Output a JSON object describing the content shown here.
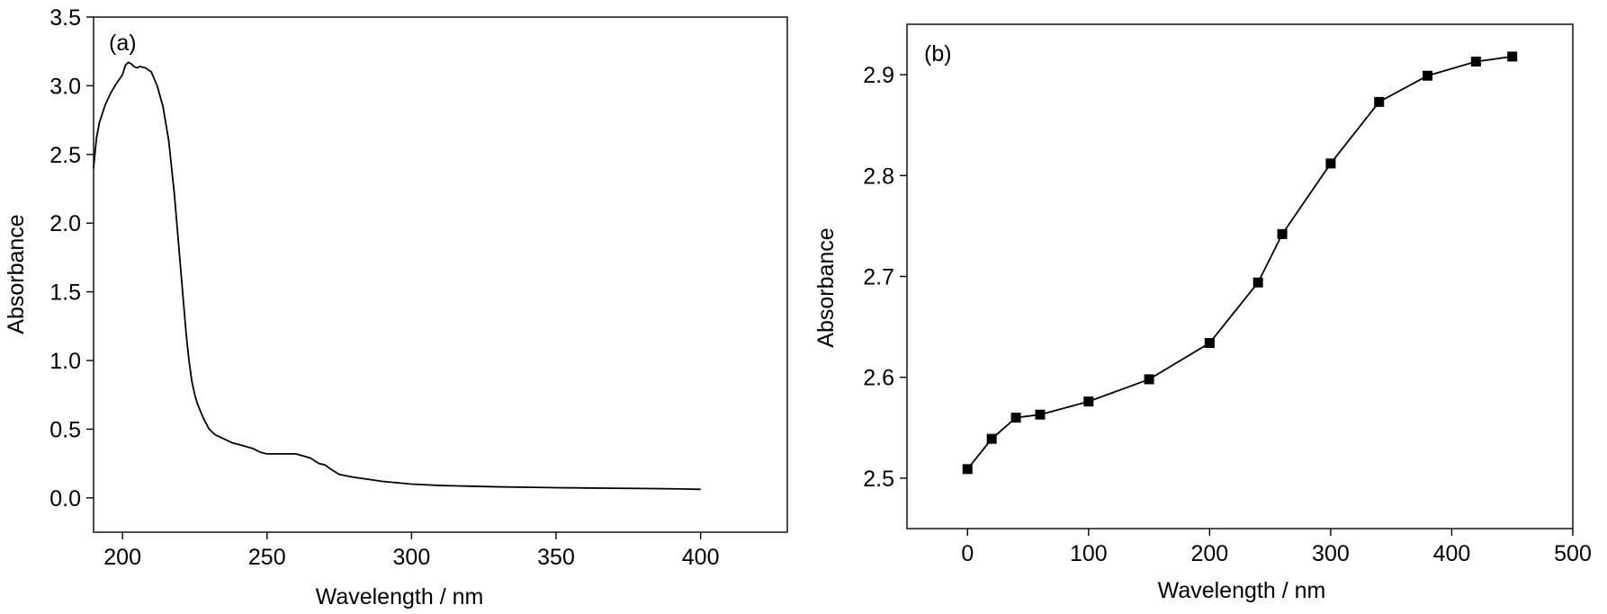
{
  "chart_data": [
    {
      "type": "line",
      "panel_label": "(a)",
      "xlabel": "Wavelength / nm",
      "ylabel": "Absorbance",
      "xlim": [
        190,
        430
      ],
      "ylim": [
        -0.25,
        3.5
      ],
      "x_ticks": [
        "200",
        "250",
        "300",
        "350",
        "400"
      ],
      "y_ticks": [
        "0.0",
        "0.5",
        "1.0",
        "1.5",
        "2.0",
        "2.5",
        "3.0",
        "3.5"
      ],
      "grid": false,
      "x": [
        190,
        191,
        192,
        194,
        196,
        198,
        200,
        201,
        202,
        203,
        204,
        205,
        206,
        208,
        210,
        212,
        214,
        216,
        218,
        219,
        220,
        221,
        222,
        223,
        224,
        225,
        226,
        228,
        230,
        232,
        235,
        238,
        240,
        245,
        248,
        250,
        255,
        260,
        265,
        268,
        270,
        272,
        275,
        280,
        290,
        300,
        310,
        320,
        330,
        340,
        350,
        360,
        370,
        380,
        390,
        400
      ],
      "y": [
        2.4,
        2.62,
        2.73,
        2.86,
        2.95,
        3.02,
        3.08,
        3.15,
        3.17,
        3.16,
        3.14,
        3.13,
        3.14,
        3.13,
        3.1,
        3.0,
        2.85,
        2.6,
        2.2,
        1.95,
        1.7,
        1.45,
        1.2,
        1.0,
        0.85,
        0.75,
        0.68,
        0.58,
        0.5,
        0.46,
        0.43,
        0.4,
        0.39,
        0.36,
        0.33,
        0.32,
        0.32,
        0.32,
        0.29,
        0.25,
        0.24,
        0.21,
        0.17,
        0.15,
        0.12,
        0.1,
        0.09,
        0.085,
        0.08,
        0.077,
        0.074,
        0.072,
        0.07,
        0.068,
        0.066,
        0.062
      ]
    },
    {
      "type": "line",
      "panel_label": "(b)",
      "xlabel": "Wavelength / nm",
      "ylabel": "Absorbance",
      "xlim": [
        -50,
        500
      ],
      "ylim": [
        2.45,
        2.95
      ],
      "x_ticks": [
        "0",
        "100",
        "200",
        "300",
        "400",
        "500"
      ],
      "y_ticks": [
        "2.5",
        "2.6",
        "2.7",
        "2.8",
        "2.9"
      ],
      "grid": false,
      "markers": "square",
      "x": [
        0,
        20,
        40,
        60,
        100,
        150,
        200,
        240,
        260,
        300,
        340,
        380,
        420,
        450
      ],
      "y": [
        2.509,
        2.539,
        2.56,
        2.563,
        2.576,
        2.598,
        2.634,
        2.694,
        2.742,
        2.812,
        2.873,
        2.899,
        2.913,
        2.918
      ]
    }
  ]
}
